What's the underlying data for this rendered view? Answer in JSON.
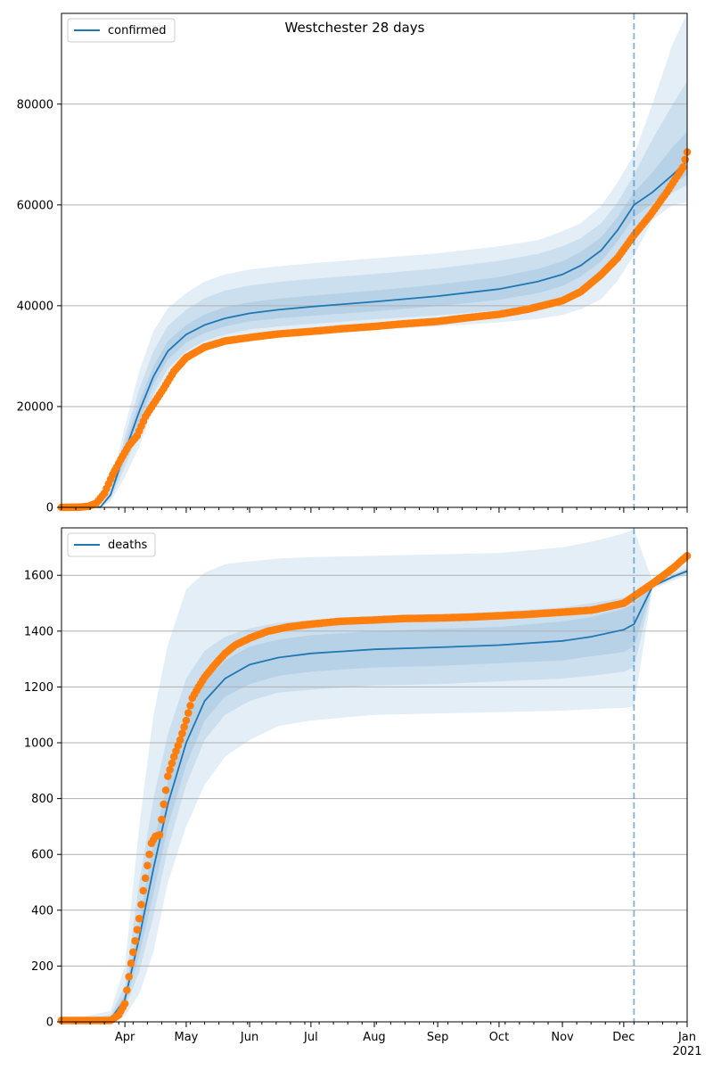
{
  "colors": {
    "model": "#1f77b4",
    "observed": "#ff7f0e",
    "band": "#1f77b4",
    "grid": "#b0b0b0",
    "forecast_line": "#1f77b4"
  },
  "forecast_start": "2020-12-06",
  "x_axis": {
    "range": [
      "2020-03-01",
      "2021-01-01"
    ],
    "month_labels": [
      {
        "label": "Apr",
        "date": "2020-04-01"
      },
      {
        "label": "May",
        "date": "2020-05-01"
      },
      {
        "label": "Jun",
        "date": "2020-06-01"
      },
      {
        "label": "Jul",
        "date": "2020-07-01"
      },
      {
        "label": "Aug",
        "date": "2020-08-01"
      },
      {
        "label": "Sep",
        "date": "2020-09-01"
      },
      {
        "label": "Oct",
        "date": "2020-10-01"
      },
      {
        "label": "Nov",
        "date": "2020-11-01"
      },
      {
        "label": "Dec",
        "date": "2020-12-01"
      },
      {
        "label": "Jan",
        "date": "2021-01-01"
      }
    ],
    "year_label": "2021"
  },
  "chart_data": [
    {
      "type": "line",
      "title": "Westchester 28 days",
      "legend": {
        "entries": [
          "confirmed"
        ],
        "placement": "top-left"
      },
      "grid": "horizontal",
      "ylim": [
        0,
        98000
      ],
      "yticks": [
        0,
        20000,
        40000,
        60000,
        80000
      ],
      "ytick_labels": [
        "0",
        "20000",
        "40000",
        "60000",
        "80000"
      ],
      "model": {
        "name": "confirmed",
        "x": [
          "2020-03-01",
          "2020-03-20",
          "2020-03-25",
          "2020-04-01",
          "2020-04-08",
          "2020-04-15",
          "2020-04-22",
          "2020-05-01",
          "2020-05-10",
          "2020-05-20",
          "2020-06-01",
          "2020-06-15",
          "2020-07-01",
          "2020-08-01",
          "2020-09-01",
          "2020-10-01",
          "2020-10-20",
          "2020-11-01",
          "2020-11-10",
          "2020-11-20",
          "2020-11-28",
          "2020-12-06",
          "2020-12-15",
          "2020-12-25",
          "2021-01-01"
        ],
        "y": [
          0,
          50,
          2500,
          11000,
          19000,
          26000,
          31000,
          34300,
          36200,
          37500,
          38500,
          39200,
          39800,
          40800,
          41900,
          43300,
          44800,
          46200,
          48000,
          51000,
          55000,
          60000,
          62500,
          66000,
          68700
        ]
      },
      "bands": [
        {
          "lower": [
            0,
            0,
            1200,
            6000,
            12000,
            20000,
            25000,
            29000,
            31000,
            32200,
            33200,
            33800,
            34300,
            35200,
            35900,
            36700,
            37400,
            38200,
            39300,
            41300,
            45000,
            50000,
            57000,
            60000,
            60500
          ],
          "upper": [
            0,
            200,
            4500,
            16000,
            27000,
            35000,
            39500,
            42500,
            44800,
            46200,
            47200,
            47800,
            48400,
            49400,
            50400,
            51800,
            53000,
            54800,
            56400,
            59800,
            64500,
            70000,
            80000,
            92000,
            98000
          ]
        },
        {
          "lower": [
            0,
            10,
            1700,
            8000,
            15000,
            22500,
            27500,
            31000,
            33000,
            34300,
            35300,
            35900,
            36400,
            37300,
            38100,
            39100,
            40200,
            41600,
            43500,
            46500,
            50500,
            55000,
            59000,
            62500,
            64000
          ],
          "upper": [
            0,
            120,
            3700,
            14000,
            23500,
            31000,
            36000,
            39200,
            41500,
            43000,
            44000,
            44700,
            45300,
            46300,
            47400,
            48900,
            50300,
            51800,
            53400,
            56400,
            60500,
            66000,
            73000,
            80000,
            84500
          ]
        },
        {
          "lower": [
            0,
            25,
            2100,
            9500,
            17000,
            24300,
            29300,
            32700,
            34600,
            35900,
            36900,
            37500,
            38000,
            38900,
            39900,
            41200,
            42500,
            43900,
            45800,
            48800,
            52800,
            57500,
            60300,
            64000,
            66000
          ],
          "upper": [
            0,
            80,
            3000,
            12500,
            21000,
            28000,
            33000,
            36200,
            38300,
            39700,
            40700,
            41400,
            42000,
            43000,
            44200,
            45700,
            47300,
            48800,
            50700,
            53600,
            57600,
            62500,
            66500,
            71500,
            74500
          ]
        }
      ],
      "observed": {
        "x": [
          "2020-03-01",
          "2020-03-10",
          "2020-03-14",
          "2020-03-18",
          "2020-03-22",
          "2020-03-26",
          "2020-03-30",
          "2020-04-03",
          "2020-04-07",
          "2020-04-11",
          "2020-04-15",
          "2020-04-20",
          "2020-04-25",
          "2020-05-01",
          "2020-05-10",
          "2020-05-20",
          "2020-06-01",
          "2020-06-15",
          "2020-07-01",
          "2020-07-15",
          "2020-08-01",
          "2020-08-15",
          "2020-09-01",
          "2020-09-15",
          "2020-10-01",
          "2020-10-15",
          "2020-11-01",
          "2020-11-10",
          "2020-11-20",
          "2020-11-28",
          "2020-12-06",
          "2020-12-14",
          "2020-12-22",
          "2020-12-30",
          "2021-01-01"
        ],
        "y": [
          0,
          50,
          200,
          800,
          2800,
          6500,
          9500,
          12300,
          14200,
          18000,
          20500,
          23600,
          27000,
          29700,
          31800,
          33000,
          33700,
          34400,
          34900,
          35400,
          35900,
          36400,
          36900,
          37600,
          38300,
          39300,
          41000,
          42800,
          46200,
          49500,
          54000,
          58000,
          62500,
          67500,
          70500
        ]
      }
    },
    {
      "type": "line",
      "title": "",
      "legend": {
        "entries": [
          "deaths"
        ],
        "placement": "top-left"
      },
      "grid": "horizontal",
      "ylim": [
        0,
        1770
      ],
      "yticks": [
        0,
        200,
        400,
        600,
        800,
        1000,
        1200,
        1400,
        1600
      ],
      "ytick_labels": [
        "0",
        "200",
        "400",
        "600",
        "800",
        "1000",
        "1200",
        "1400",
        "1600"
      ],
      "model": {
        "name": "deaths",
        "x": [
          "2020-03-01",
          "2020-03-25",
          "2020-04-01",
          "2020-04-08",
          "2020-04-15",
          "2020-04-22",
          "2020-05-01",
          "2020-05-10",
          "2020-05-20",
          "2020-06-01",
          "2020-06-15",
          "2020-07-01",
          "2020-08-01",
          "2020-09-01",
          "2020-10-01",
          "2020-11-01",
          "2020-11-15",
          "2020-12-01",
          "2020-12-06",
          "2020-12-15",
          "2020-12-25",
          "2021-01-01"
        ],
        "y": [
          0,
          10,
          80,
          300,
          550,
          780,
          1000,
          1150,
          1230,
          1280,
          1305,
          1320,
          1335,
          1342,
          1350,
          1365,
          1380,
          1405,
          1425,
          1560,
          1595,
          1615
        ]
      },
      "bands": [
        {
          "lower": [
            0,
            0,
            20,
            100,
            250,
            500,
            700,
            850,
            950,
            1010,
            1060,
            1080,
            1100,
            1105,
            1110,
            1115,
            1120,
            1125,
            1130,
            1550,
            1580,
            1600
          ],
          "upper": [
            0,
            40,
            200,
            700,
            1100,
            1350,
            1550,
            1610,
            1640,
            1650,
            1660,
            1665,
            1670,
            1675,
            1680,
            1700,
            1720,
            1750,
            1765,
            1580,
            1620,
            1640
          ]
        },
        {
          "lower": [
            0,
            3,
            45,
            180,
            380,
            620,
            850,
            1010,
            1100,
            1150,
            1180,
            1190,
            1205,
            1210,
            1220,
            1230,
            1240,
            1255,
            1270,
            1555,
            1588,
            1606
          ],
          "upper": [
            0,
            25,
            130,
            500,
            800,
            1030,
            1230,
            1330,
            1380,
            1410,
            1430,
            1440,
            1450,
            1460,
            1470,
            1485,
            1500,
            1520,
            1535,
            1570,
            1605,
            1625
          ]
        },
        {
          "lower": [
            0,
            6,
            60,
            240,
            460,
            700,
            920,
            1080,
            1165,
            1210,
            1240,
            1255,
            1270,
            1275,
            1285,
            1295,
            1310,
            1325,
            1345,
            1557,
            1591,
            1610
          ],
          "upper": [
            0,
            15,
            100,
            360,
            640,
            860,
            1080,
            1220,
            1295,
            1345,
            1370,
            1385,
            1400,
            1408,
            1415,
            1435,
            1450,
            1480,
            1500,
            1565,
            1600,
            1620
          ]
        }
      ],
      "observed": {
        "x": [
          "2020-03-01",
          "2020-03-25",
          "2020-03-29",
          "2020-04-01",
          "2020-04-04",
          "2020-04-06",
          "2020-04-08",
          "2020-04-10",
          "2020-04-12",
          "2020-04-14",
          "2020-04-16",
          "2020-04-18",
          "2020-04-20",
          "2020-04-22",
          "2020-04-25",
          "2020-04-28",
          "2020-05-01",
          "2020-05-04",
          "2020-05-07",
          "2020-05-10",
          "2020-05-15",
          "2020-05-20",
          "2020-05-25",
          "2020-06-01",
          "2020-06-10",
          "2020-06-20",
          "2020-07-01",
          "2020-07-15",
          "2020-08-01",
          "2020-08-15",
          "2020-09-01",
          "2020-09-15",
          "2020-10-01",
          "2020-10-15",
          "2020-11-01",
          "2020-11-15",
          "2020-12-01",
          "2020-12-06",
          "2020-12-15",
          "2020-12-25",
          "2021-01-01"
        ],
        "y": [
          5,
          5,
          25,
          65,
          210,
          290,
          370,
          470,
          560,
          640,
          665,
          670,
          780,
          880,
          950,
          1010,
          1080,
          1160,
          1200,
          1235,
          1280,
          1320,
          1350,
          1375,
          1400,
          1415,
          1425,
          1435,
          1440,
          1445,
          1447,
          1450,
          1455,
          1460,
          1468,
          1475,
          1500,
          1525,
          1570,
          1625,
          1670
        ]
      }
    }
  ]
}
